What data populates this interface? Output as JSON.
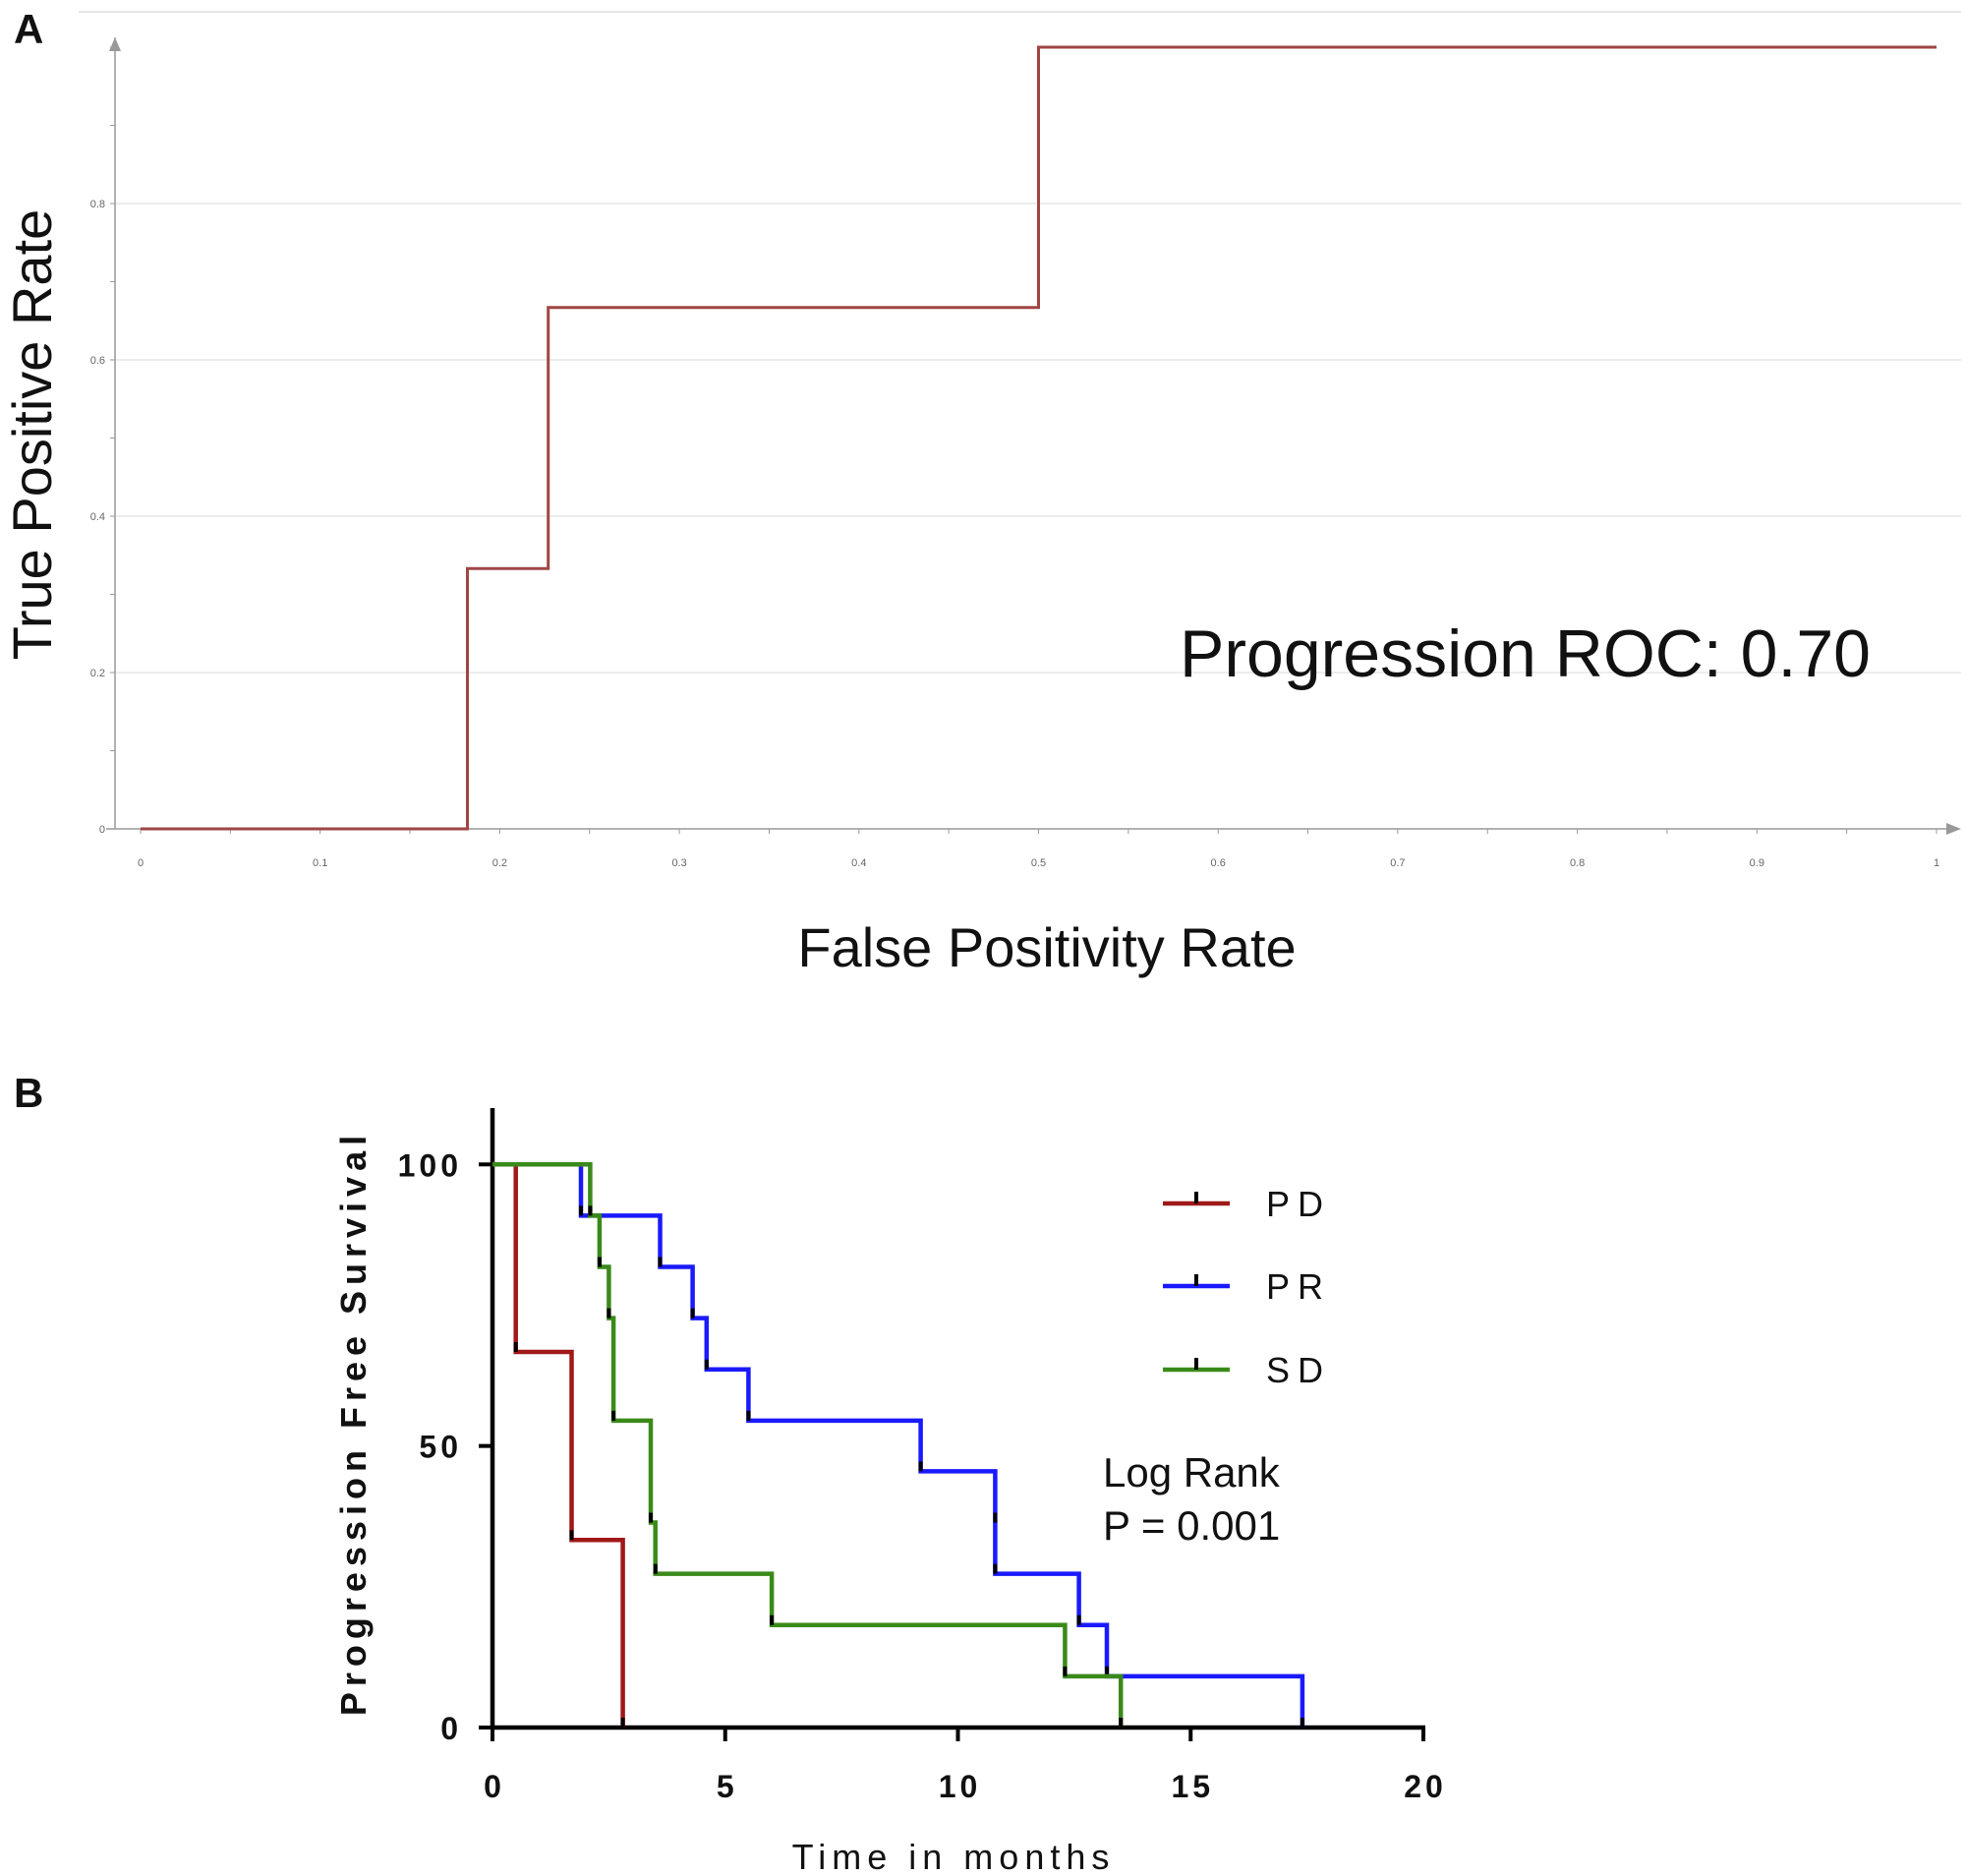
{
  "panels": {
    "a": {
      "letter": "A"
    },
    "b": {
      "letter": "B"
    }
  },
  "chart_data": [
    {
      "type": "line",
      "step": true,
      "xlabel": "False Positivity Rate",
      "ylabel": "True Positive Rate",
      "xlim": [
        0,
        1
      ],
      "ylim": [
        0,
        1
      ],
      "xticks": [
        0,
        0.1,
        0.2,
        0.3,
        0.4,
        0.5,
        0.6,
        0.7,
        0.8,
        0.9,
        1
      ],
      "yticks": [
        0,
        0.2,
        0.4,
        0.6,
        0.8
      ],
      "xtick_labels": [
        "0",
        "0.1",
        "0.2",
        "0.3",
        "0.4",
        "0.5",
        "0.6",
        "0.7",
        "0.8",
        "0.9",
        "1"
      ],
      "ytick_labels": [
        "0",
        "0.2",
        "0.4",
        "0.6",
        "0.8"
      ],
      "grid": true,
      "annotation": "Progression ROC: 0.70",
      "colors": {
        "curve": "#a04545",
        "grid": "#e6e6e6",
        "axis": "#999999"
      },
      "series": [
        {
          "x": [
            0,
            0.182,
            0.182,
            0.227,
            0.227,
            0.5,
            0.5,
            1
          ],
          "y": [
            0,
            0,
            0.333,
            0.333,
            0.667,
            0.667,
            1,
            1
          ]
        }
      ]
    },
    {
      "type": "line",
      "step": true,
      "xlabel": "Time in months",
      "ylabel": "Progression Free Survival",
      "xlim": [
        0,
        20
      ],
      "ylim": [
        0,
        110
      ],
      "xticks": [
        0,
        5,
        10,
        15,
        20
      ],
      "yticks": [
        0,
        50,
        100
      ],
      "xtick_labels": [
        "0",
        "5",
        "10",
        "15",
        "20"
      ],
      "ytick_labels": [
        "0",
        "50",
        "100"
      ],
      "grid": false,
      "legend": "top-right",
      "annotation": [
        "Log Rank",
        "P = 0.001"
      ],
      "series": [
        {
          "name": "PD",
          "color": "#a01818",
          "x": [
            0,
            0.5,
            0.5,
            1.7,
            1.7,
            2.8,
            2.8
          ],
          "y": [
            100,
            100,
            66.7,
            66.7,
            33.3,
            33.3,
            0
          ]
        },
        {
          "name": "PR",
          "color": "#1a1aff",
          "x": [
            0,
            1.9,
            1.9,
            3.6,
            3.6,
            4.3,
            4.3,
            4.6,
            4.6,
            5.5,
            5.5,
            9.2,
            9.2,
            10.8,
            10.8,
            10.8,
            12.6,
            12.6,
            13.2,
            13.2,
            17.4,
            17.4
          ],
          "y": [
            100,
            100,
            90.9,
            90.9,
            81.8,
            81.8,
            72.7,
            72.7,
            63.6,
            63.6,
            54.5,
            54.5,
            45.5,
            45.5,
            36.4,
            27.3,
            27.3,
            18.2,
            18.2,
            9.1,
            9.1,
            0
          ]
        },
        {
          "name": "SD",
          "color": "#3a8a1a",
          "x": [
            0,
            2.1,
            2.1,
            2.3,
            2.3,
            2.5,
            2.5,
            2.6,
            2.6,
            3.4,
            3.4,
            3.5,
            3.5,
            6.0,
            6.0,
            12.3,
            12.3,
            13.5,
            13.5
          ],
          "y": [
            100,
            100,
            90.9,
            90.9,
            81.8,
            81.8,
            72.7,
            72.7,
            54.5,
            54.5,
            36.4,
            36.4,
            27.3,
            27.3,
            18.2,
            18.2,
            9.1,
            9.1,
            0
          ]
        }
      ]
    }
  ]
}
